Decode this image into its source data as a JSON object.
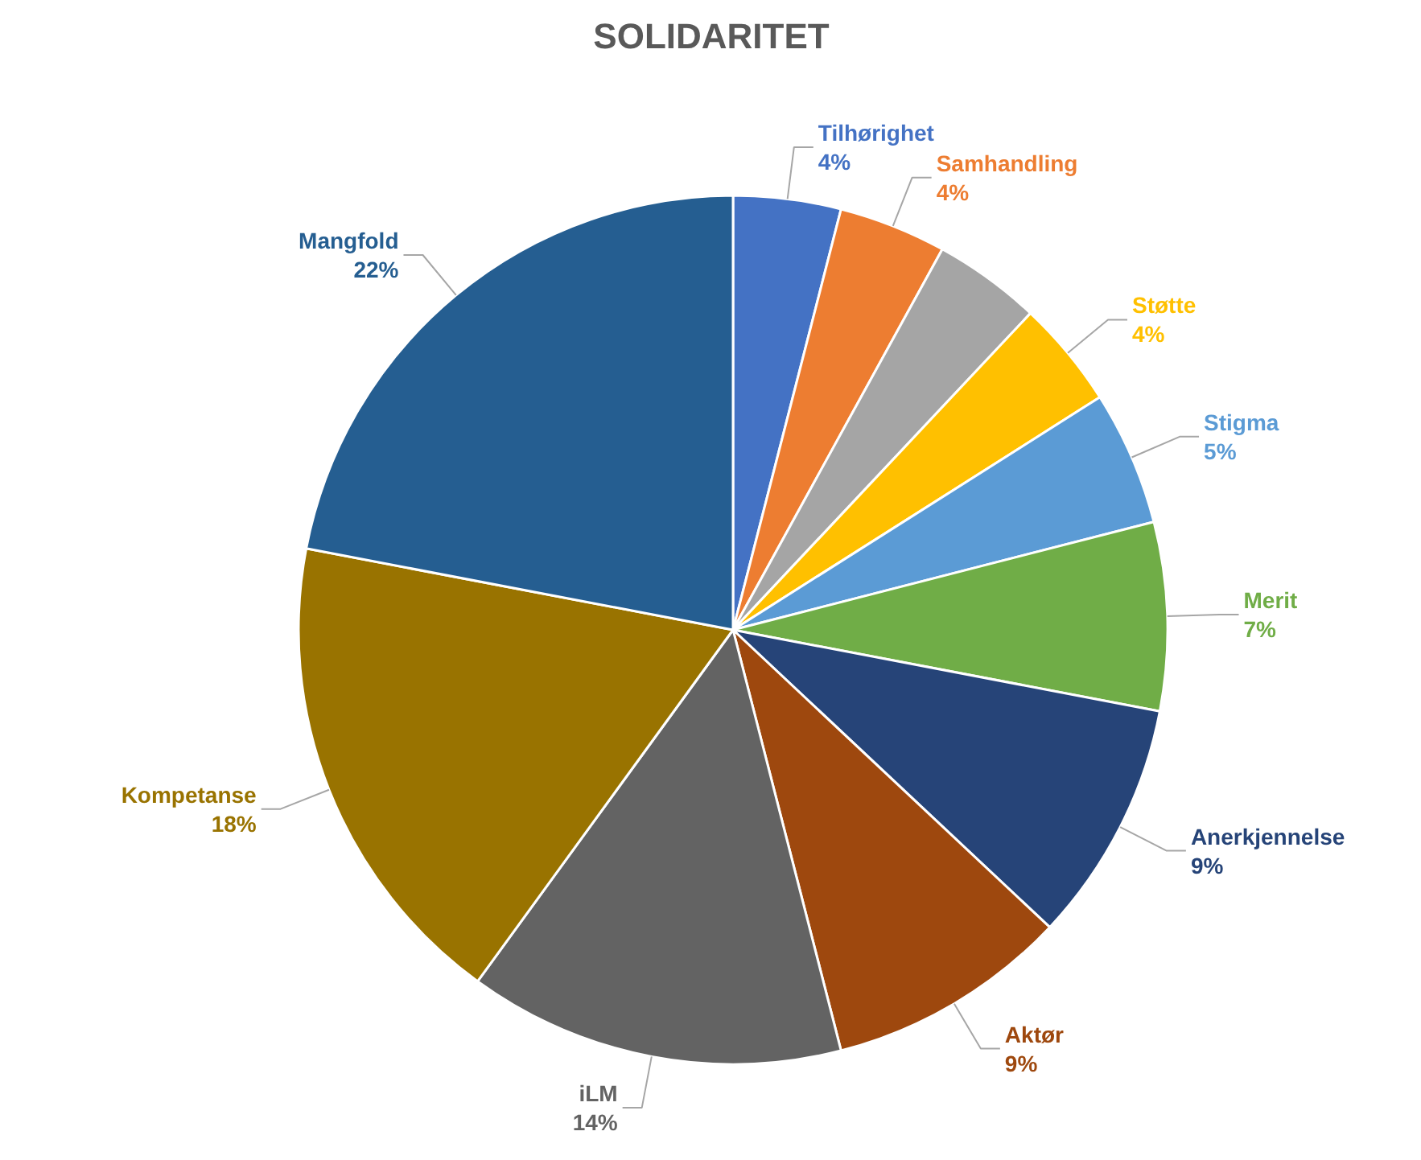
{
  "chart_data": {
    "type": "pie",
    "title": "SOLIDARITET",
    "categories": [
      "Tilhørighet",
      "Samhandling",
      null,
      "Støtte",
      "Stigma",
      "Merit",
      "Anerkjennelse",
      "Aktør",
      "iLM",
      "Kompetanse",
      "Mangfold"
    ],
    "values": [
      4,
      4,
      4,
      4,
      5,
      7,
      9,
      9,
      14,
      18,
      22
    ],
    "value_labels": [
      "4%",
      "4%",
      null,
      "4%",
      "5%",
      "7%",
      "9%",
      "9%",
      "14%",
      "18%",
      "22%"
    ],
    "colors": [
      "#4472c4",
      "#ed7d31",
      "#a5a5a5",
      "#ffc000",
      "#5b9bd5",
      "#70ad47",
      "#264478",
      "#9e480e",
      "#636363",
      "#997300",
      "#255e91"
    ]
  }
}
